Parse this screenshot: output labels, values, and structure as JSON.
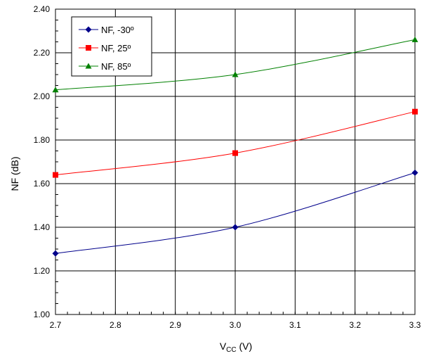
{
  "chart_data": {
    "type": "line",
    "title": "",
    "xlabel": "V",
    "xlabel_sub": "CC",
    "xlabel_unit": " (V)",
    "ylabel": "NF (dB)",
    "xlim": [
      2.7,
      3.3
    ],
    "ylim": [
      1.0,
      2.4
    ],
    "x_ticks": [
      "2.7",
      "2.8",
      "2.9",
      "3.0",
      "3.1",
      "3.2",
      "3.3"
    ],
    "y_ticks": [
      "1.00",
      "1.20",
      "1.40",
      "1.60",
      "1.80",
      "2.00",
      "2.20",
      "2.40"
    ],
    "grid": true,
    "legend_position": "top-left",
    "series": [
      {
        "name": "NF, -30º",
        "color": "#00008B",
        "marker": "diamond",
        "x": [
          2.7,
          3.0,
          3.3
        ],
        "y": [
          1.28,
          1.4,
          1.65
        ]
      },
      {
        "name": "NF, 25º",
        "color": "#FF0000",
        "marker": "square",
        "x": [
          2.7,
          3.0,
          3.3
        ],
        "y": [
          1.64,
          1.74,
          1.93
        ]
      },
      {
        "name": "NF, 85º",
        "color": "#008000",
        "marker": "triangle",
        "x": [
          2.7,
          3.0,
          3.3
        ],
        "y": [
          2.03,
          2.1,
          2.26
        ]
      }
    ]
  }
}
